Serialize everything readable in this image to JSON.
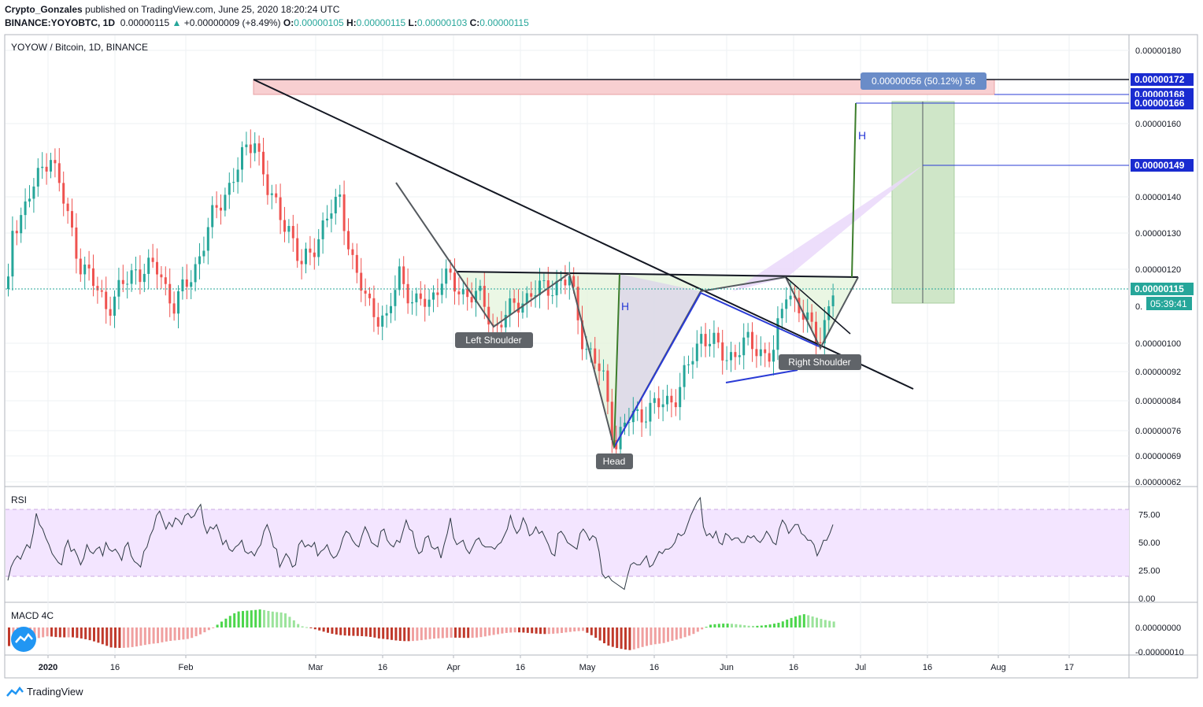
{
  "header": {
    "author": "Crypto_Gonzales",
    "published": "published on TradingView.com, June 25, 2020 18:20:24 UTC",
    "symbol": "BINANCE:YOYOBTC, 1D",
    "last": "0.00000115",
    "change": "+0.00000009 (+8.49%)",
    "o_label": "O:",
    "o": "0.00000105",
    "h_label": "H:",
    "h": "0.00000115",
    "l_label": "L:",
    "l": "0.00000103",
    "c_label": "C:",
    "c": "0.00000115"
  },
  "chart_title": "YOYOW / Bitcoin, 1D, BINANCE",
  "footer": {
    "brand": "TradingView"
  },
  "colors": {
    "up": "#26a69a",
    "down": "#ef5350",
    "line": "#131722",
    "rsi_band": "#f3e5ff",
    "macd_up": "#66cc66",
    "macd_down": "#cc3333"
  },
  "chart_data": [
    {
      "type": "candlestick",
      "title": "YOYOW / Bitcoin, 1D, BINANCE",
      "y_ticks": [
        "0.00000180",
        "0.00000160",
        "0.00000140",
        "0.00000130",
        "0.00000120",
        "0.00000100",
        "0.00000092",
        "0.00000084",
        "0.00000076",
        "0.00000069",
        "0.00000062"
      ],
      "y_tick_values": [
        180,
        160,
        140,
        130,
        120,
        100,
        92,
        84,
        76,
        69,
        62
      ],
      "x_ticks": [
        "2020",
        "16",
        "Feb",
        "Mar",
        "16",
        "Apr",
        "16",
        "May",
        "16",
        "Jun",
        "16",
        "Jul",
        "16",
        "Aug",
        "17"
      ],
      "price_tags": [
        {
          "label": "0.00000172",
          "value": 172
        },
        {
          "label": "0.00000168",
          "value": 168
        },
        {
          "label": "0.00000166",
          "value": 166
        },
        {
          "label": "0.00000149",
          "value": 149
        },
        {
          "label": "0.00000115",
          "value": 115
        }
      ],
      "countdown": "05:39:41",
      "partial_tag": "0.",
      "annotations": [
        "Left Shoulder",
        "Head",
        "Right Shoulder",
        "H",
        "H"
      ],
      "range_label": "0.00000056 (50.12%) 56",
      "range_box": [
        168,
        172
      ],
      "target_box": [
        110,
        166
      ]
    },
    {
      "type": "line",
      "title": "RSI",
      "y_ticks": [
        "75.00",
        "50.00",
        "25.00",
        "0.00"
      ],
      "y_tick_values": [
        75,
        50,
        25,
        0
      ],
      "band": [
        20,
        80
      ],
      "values": [
        16,
        28,
        34,
        38,
        35,
        42,
        48,
        45,
        58,
        76,
        66,
        62,
        54,
        48,
        40,
        36,
        32,
        30,
        45,
        52,
        42,
        44,
        38,
        30,
        36,
        48,
        42,
        40,
        44,
        46,
        38,
        50,
        44,
        42,
        44,
        40,
        34,
        46,
        50,
        38,
        33,
        31,
        28,
        42,
        46,
        56,
        62,
        74,
        78,
        70,
        62,
        68,
        64,
        72,
        70,
        66,
        74,
        76,
        72,
        74,
        80,
        84,
        66,
        58,
        64,
        62,
        66,
        58,
        48,
        52,
        44,
        42,
        46,
        48,
        52,
        42,
        40,
        42,
        38,
        44,
        48,
        60,
        66,
        58,
        46,
        44,
        28,
        34,
        40,
        36,
        28,
        30,
        48,
        52,
        46,
        48,
        46,
        50,
        38,
        42,
        44,
        48,
        40,
        36,
        38,
        44,
        54,
        60,
        58,
        52,
        48,
        46,
        56,
        64,
        58,
        50,
        48,
        46,
        60,
        62,
        52,
        48,
        46,
        52,
        50,
        60,
        70,
        62,
        60,
        46,
        40,
        42,
        54,
        56,
        46,
        44,
        46,
        36,
        48,
        58,
        72,
        54,
        48,
        50,
        52,
        44,
        40,
        46,
        52,
        54,
        48,
        46,
        46,
        46,
        44,
        48,
        50,
        56,
        62,
        74,
        64,
        58,
        62,
        72,
        66,
        56,
        58,
        64,
        58,
        60,
        54,
        48,
        40,
        38,
        58,
        60,
        56,
        50,
        48,
        46,
        44,
        58,
        62,
        58,
        52,
        56,
        54,
        42,
        22,
        18,
        20,
        16,
        14,
        12,
        10,
        8,
        20,
        30,
        32,
        30,
        30,
        34,
        38,
        28,
        30,
        36,
        42,
        40,
        44,
        44,
        46,
        50,
        58,
        56,
        58,
        66,
        74,
        80,
        86,
        90,
        64,
        56,
        58,
        54,
        60,
        50,
        48,
        58,
        56,
        52,
        54,
        54,
        50,
        50,
        56,
        54,
        56,
        52,
        50,
        54,
        60,
        56,
        50,
        48,
        62,
        70,
        66,
        58,
        62,
        66,
        66,
        58,
        56,
        52,
        52,
        48,
        38,
        44,
        52,
        52,
        58,
        66
      ]
    },
    {
      "type": "bar",
      "title": "MACD 4C",
      "y_ticks": [
        "0.00000000",
        "-0.00000010"
      ],
      "y_tick_values": [
        0,
        -10
      ]
    }
  ]
}
